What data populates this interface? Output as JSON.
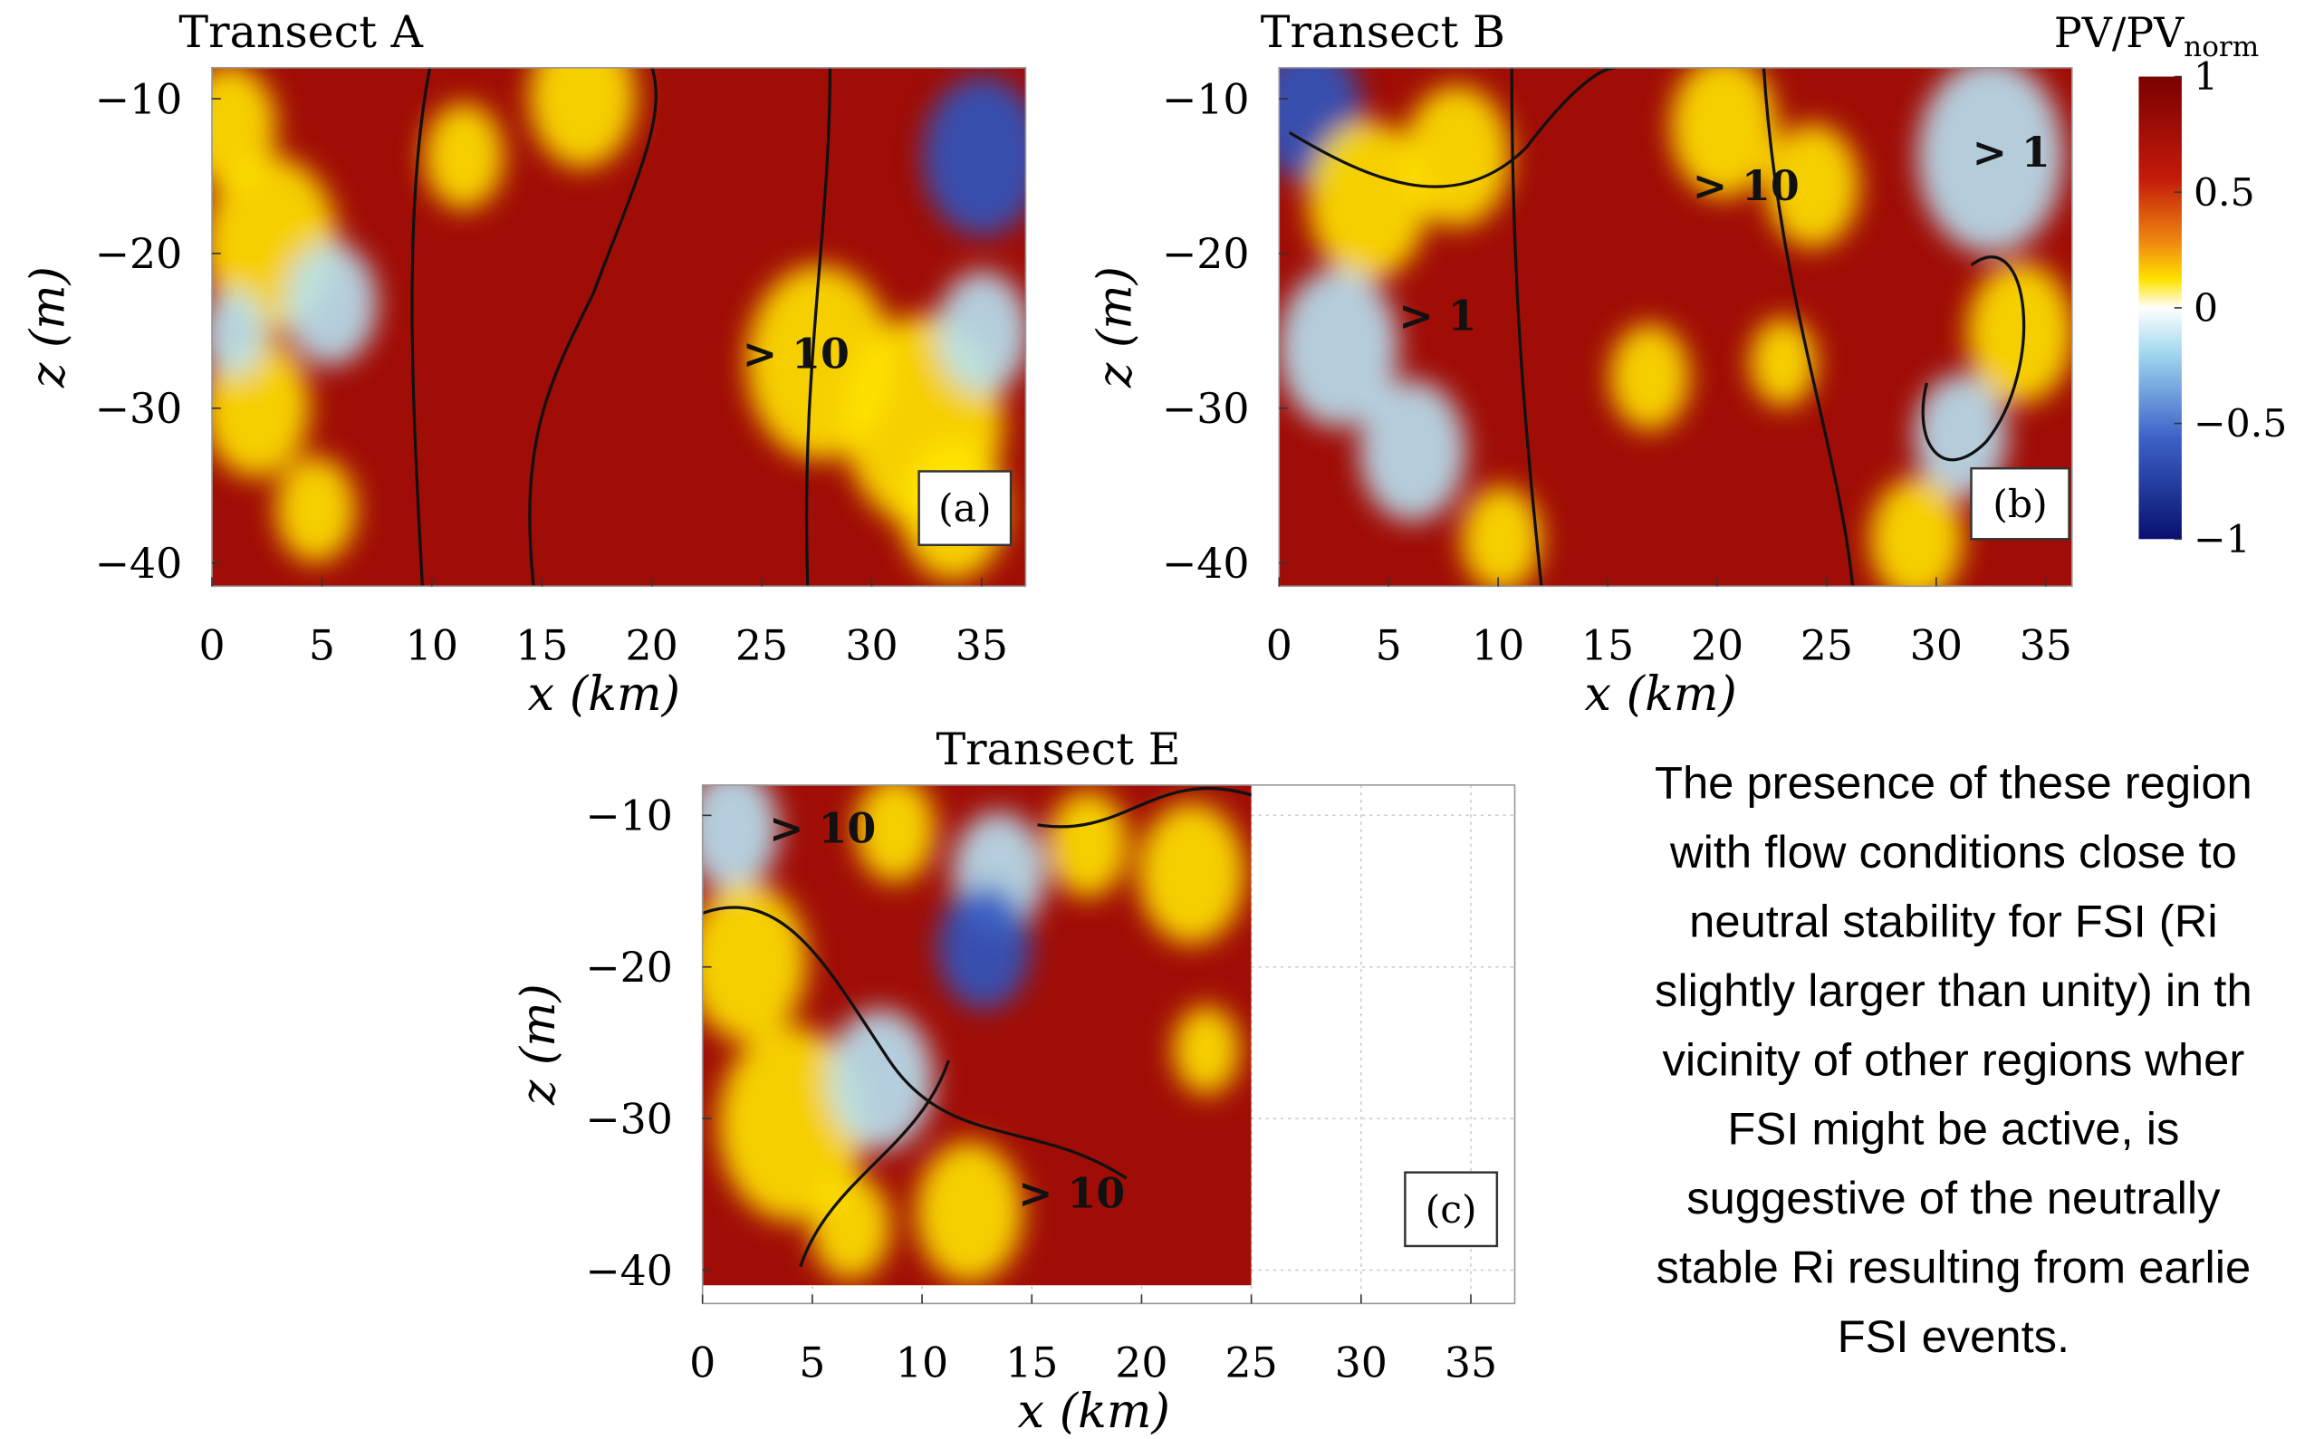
{
  "figure": {
    "panels": [
      {
        "title": "Transect A",
        "label": "(a)",
        "xlabel": "x (km)",
        "ylabel": "z (m)",
        "xlim": [
          0,
          37
        ],
        "ylim": [
          -41.5,
          -8
        ],
        "xticks": [
          0,
          5,
          10,
          15,
          20,
          25,
          30,
          35
        ],
        "yticks": [
          {
            "value": -10,
            "label": "−10"
          },
          {
            "value": -20,
            "label": "−20"
          },
          {
            "value": -30,
            "label": "−30"
          },
          {
            "value": -40,
            "label": "−40"
          }
        ],
        "annotations": [
          "> 10"
        ]
      },
      {
        "title": "Transect B",
        "label": "(b)",
        "xlabel": "x (km)",
        "ylabel": "z (m)",
        "xlim": [
          0,
          36.2
        ],
        "ylim": [
          -41.5,
          -8
        ],
        "xticks": [
          0,
          5,
          10,
          15,
          20,
          25,
          30,
          35
        ],
        "yticks": [
          {
            "value": -10,
            "label": "−10"
          },
          {
            "value": -20,
            "label": "−20"
          },
          {
            "value": -30,
            "label": "−30"
          },
          {
            "value": -40,
            "label": "−40"
          }
        ],
        "annotations": [
          "> 10",
          "> 1",
          "> 1"
        ]
      },
      {
        "title": "Transect E",
        "label": "(c)",
        "xlabel": "x (km)",
        "ylabel": "z (m)",
        "xlim": [
          0,
          37
        ],
        "ylim": [
          -42.2,
          -8
        ],
        "xticks": [
          0,
          5,
          10,
          15,
          20,
          25,
          30,
          35
        ],
        "yticks": [
          {
            "value": -10,
            "label": "−10"
          },
          {
            "value": -20,
            "label": "−20"
          },
          {
            "value": -30,
            "label": "−30"
          },
          {
            "value": -40,
            "label": "−40"
          }
        ],
        "annotations": [
          "> 10",
          "> 10"
        ]
      }
    ],
    "colorbar": {
      "label": "PV/PV",
      "label_sub": "norm",
      "lim": [
        -1,
        1
      ],
      "ticks": [
        1,
        0.5,
        0,
        {
          "value": -0.5,
          "label": "−0.5"
        },
        {
          "value": -1,
          "label": "−1"
        }
      ]
    },
    "caption_lines": [
      "The presence of these region",
      "with flow conditions close to",
      "neutral stability for FSI (Ri",
      "slightly larger than unity) in th",
      "vicinity of other regions wher",
      "FSI might be active, is",
      "suggestive of the neutrally",
      "stable Ri resulting from earlie",
      "FSI events."
    ]
  }
}
